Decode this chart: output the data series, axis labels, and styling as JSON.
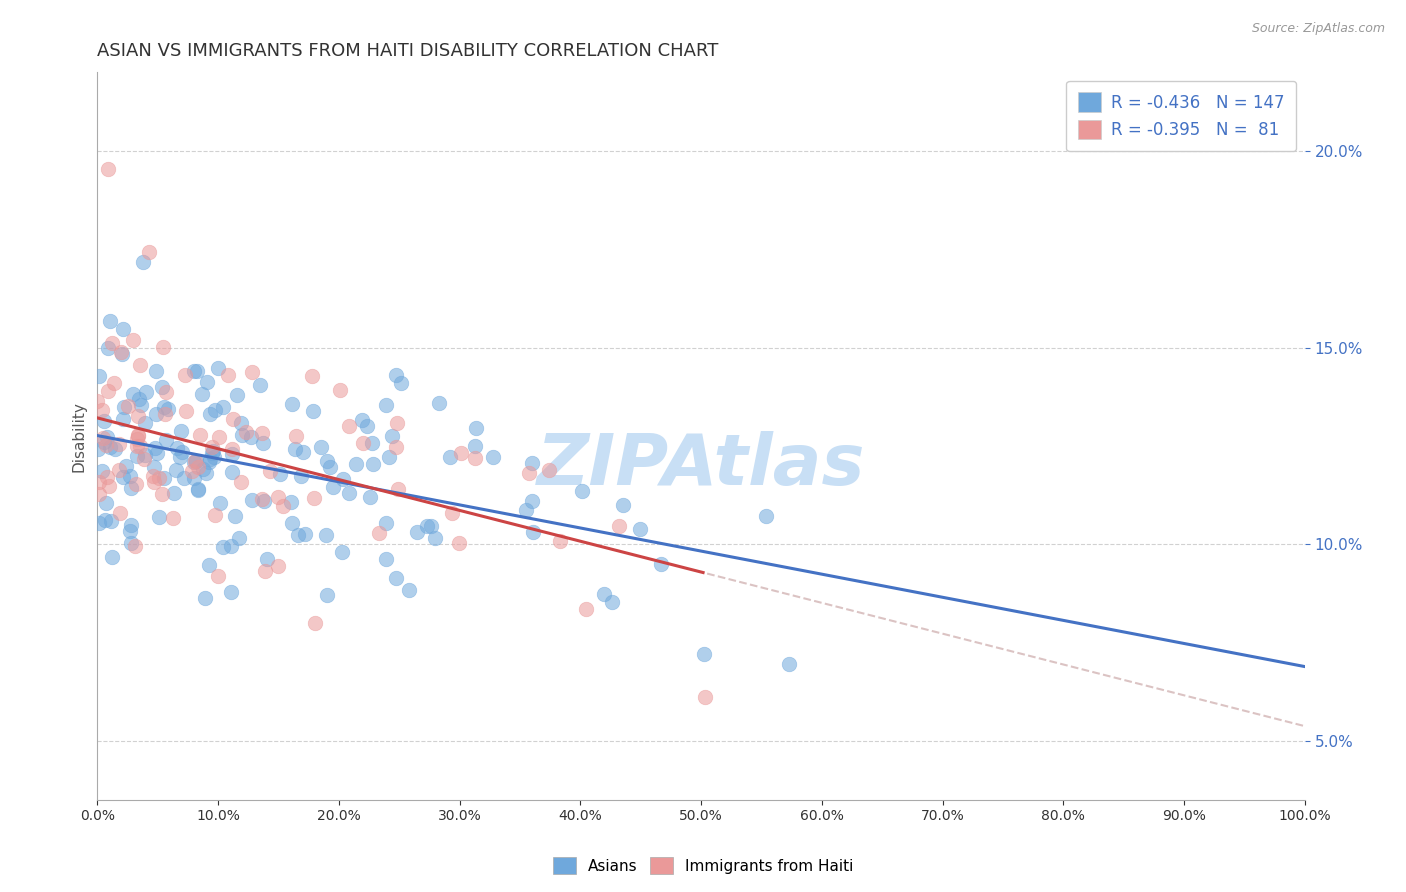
{
  "title": "ASIAN VS IMMIGRANTS FROM HAITI DISABILITY CORRELATION CHART",
  "source": "Source: ZipAtlas.com",
  "ylabel": "Disability",
  "watermark": "ZIPAtlas",
  "xlim": [
    0.0,
    100.0
  ],
  "ylim": [
    3.5,
    22.0
  ],
  "x_ticks": [
    0.0,
    10.0,
    20.0,
    30.0,
    40.0,
    50.0,
    60.0,
    70.0,
    80.0,
    90.0,
    100.0
  ],
  "y_ticks": [
    5.0,
    10.0,
    15.0,
    20.0
  ],
  "asian_color": "#6fa8dc",
  "haiti_color": "#ea9999",
  "asian_line_color": "#4472c4",
  "haiti_line_color": "#cc4444",
  "haiti_dash_color": "#ccaaaa",
  "legend_r_asian": "-0.436",
  "legend_n_asian": "147",
  "legend_r_haiti": "-0.395",
  "legend_n_haiti": " 81",
  "background_color": "#ffffff",
  "grid_color": "#cccccc",
  "title_color": "#333333",
  "axis_color": "#555555",
  "title_fontsize": 13,
  "label_fontsize": 11,
  "tick_fontsize": 10,
  "source_fontsize": 9,
  "watermark_fontsize": 52,
  "watermark_color": "#c8dff5",
  "legend_r_color": "#4472c4",
  "scatter_size": 110,
  "scatter_alpha": 0.55
}
